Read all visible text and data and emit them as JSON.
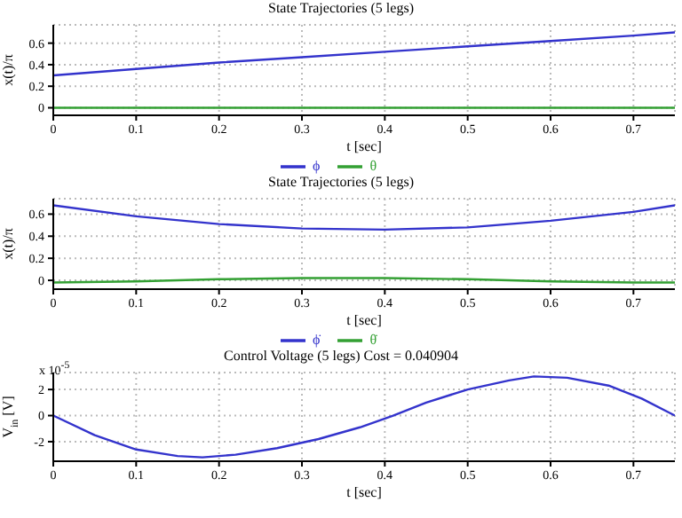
{
  "chart_data": [
    {
      "type": "line",
      "title": "State Trajectories (5 legs)",
      "xlabel": "t [sec]",
      "ylabel": "x(t)/π",
      "x": [
        0,
        0.1,
        0.2,
        0.3,
        0.4,
        0.5,
        0.6,
        0.7,
        0.75
      ],
      "xlim": [
        0,
        0.75
      ],
      "xticks": [
        0,
        0.1,
        0.2,
        0.3,
        0.4,
        0.5,
        0.6,
        0.7
      ],
      "ylim": [
        -0.07,
        0.77
      ],
      "yticks": [
        0,
        0.2,
        0.4,
        0.6
      ],
      "grid": true,
      "legend": "bottom",
      "marker": "none",
      "line_style": "solid",
      "series": [
        {
          "name": "ϕ",
          "color": "#3333cc",
          "values": [
            0.3,
            0.36,
            0.42,
            0.47,
            0.52,
            0.57,
            0.62,
            0.67,
            0.7
          ]
        },
        {
          "name": "θ",
          "color": "#33a033",
          "values": [
            0,
            0,
            0,
            0,
            0,
            0,
            0,
            0,
            0
          ]
        }
      ]
    },
    {
      "type": "line",
      "title": "State Trajectories (5 legs)",
      "xlabel": "t [sec]",
      "ylabel": "x(t)/π",
      "x": [
        0,
        0.1,
        0.2,
        0.3,
        0.4,
        0.5,
        0.6,
        0.7,
        0.75
      ],
      "xlim": [
        0,
        0.75
      ],
      "xticks": [
        0,
        0.1,
        0.2,
        0.3,
        0.4,
        0.5,
        0.6,
        0.7
      ],
      "ylim": [
        -0.08,
        0.74
      ],
      "yticks": [
        0,
        0.2,
        0.4,
        0.6
      ],
      "grid": true,
      "legend": "bottom",
      "marker": "none",
      "line_style": "solid",
      "series": [
        {
          "name": "ϕ̇",
          "color": "#3333cc",
          "values": [
            0.68,
            0.58,
            0.51,
            0.47,
            0.46,
            0.48,
            0.54,
            0.62,
            0.68
          ]
        },
        {
          "name": "θ̇",
          "color": "#33a033",
          "values": [
            -0.02,
            -0.01,
            0.01,
            0.02,
            0.02,
            0.01,
            -0.01,
            -0.02,
            -0.02
          ]
        }
      ]
    },
    {
      "type": "line",
      "title": "Control Voltage (5 legs) Cost = 0.040904",
      "xlabel": "t [sec]",
      "ylabel": "V$_{in}$ [V]",
      "annotations": [
        "x 10$^{-5}$"
      ],
      "x": [
        0,
        0.05,
        0.1,
        0.15,
        0.18,
        0.22,
        0.27,
        0.32,
        0.37,
        0.41,
        0.45,
        0.5,
        0.55,
        0.58,
        0.62,
        0.67,
        0.71,
        0.75
      ],
      "xlim": [
        0,
        0.75
      ],
      "xticks": [
        0,
        0.1,
        0.2,
        0.3,
        0.4,
        0.5,
        0.6,
        0.7
      ],
      "ylim": [
        -3.5,
        3.3
      ],
      "yticks": [
        -2,
        0,
        2
      ],
      "grid": true,
      "legend": false,
      "marker": "none",
      "line_style": "solid",
      "series": [
        {
          "color": "#3333cc",
          "values": [
            0,
            -1.5,
            -2.6,
            -3.1,
            -3.2,
            -3.0,
            -2.5,
            -1.8,
            -0.9,
            0,
            1.0,
            2.0,
            2.7,
            3.0,
            2.9,
            2.3,
            1.3,
            0
          ]
        }
      ]
    }
  ]
}
